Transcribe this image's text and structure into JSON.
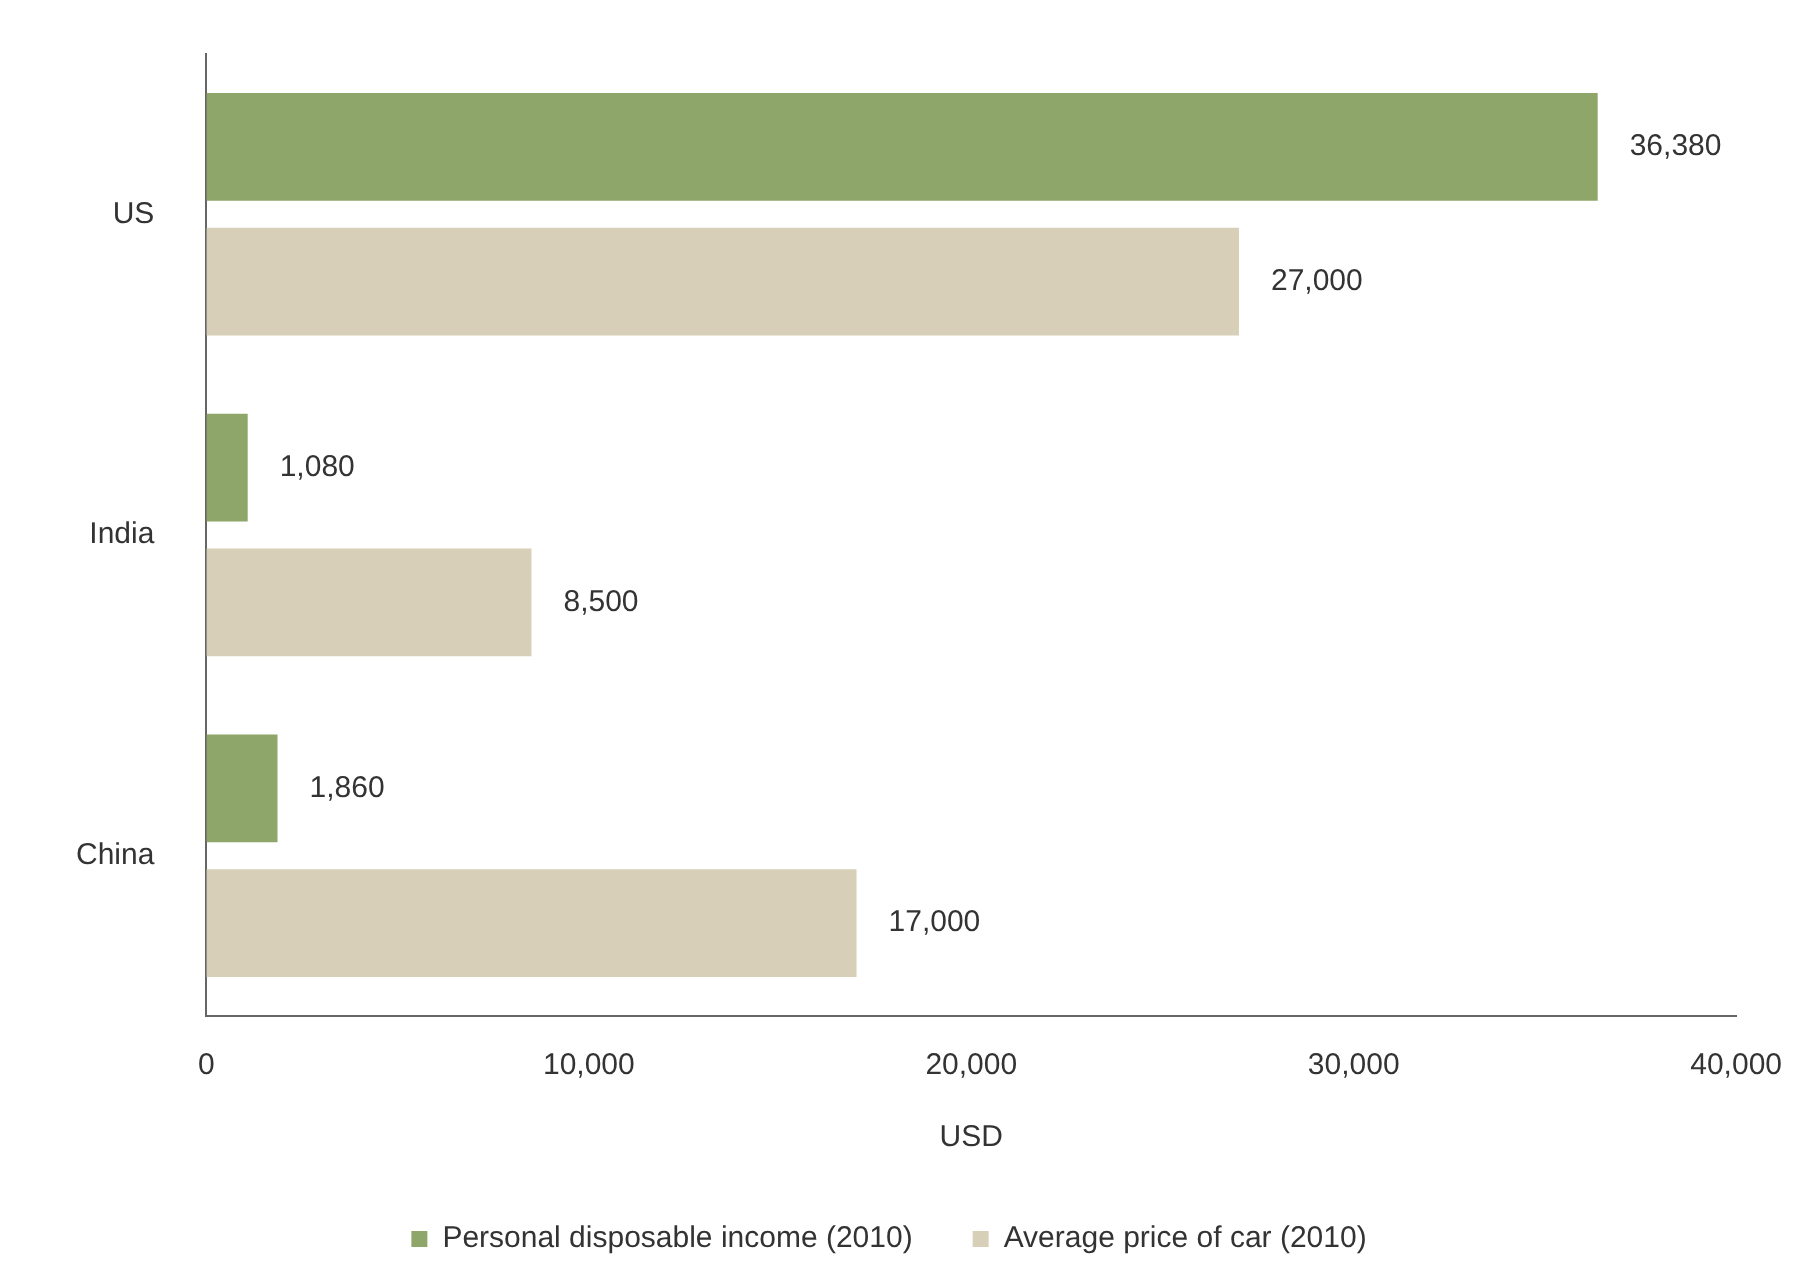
{
  "chart_data": {
    "type": "bar",
    "orientation": "horizontal",
    "xlabel": "USD",
    "categories": [
      "US",
      "India",
      "China"
    ],
    "series": [
      {
        "name": "Personal disposable income (2010)",
        "color": "#8fa66a",
        "values": [
          36380,
          1080,
          1860
        ],
        "value_labels": [
          "36,380",
          "1,080",
          "1,860"
        ]
      },
      {
        "name": "Average price of car (2010)",
        "color": "#d8cfb8",
        "values": [
          27000,
          8500,
          17000
        ],
        "value_labels": [
          "27,000",
          "8,500",
          "17,000"
        ]
      }
    ],
    "xlim": [
      0,
      40000
    ],
    "xticks": [
      0,
      {
        "value": 10000,
        "label": "10,000"
      },
      {
        "value": 20000,
        "label": "20,000"
      },
      {
        "value": 30000,
        "label": "30,000"
      },
      {
        "value": 40000,
        "label": "40,000"
      }
    ],
    "grid": false,
    "legend": "bottom"
  }
}
